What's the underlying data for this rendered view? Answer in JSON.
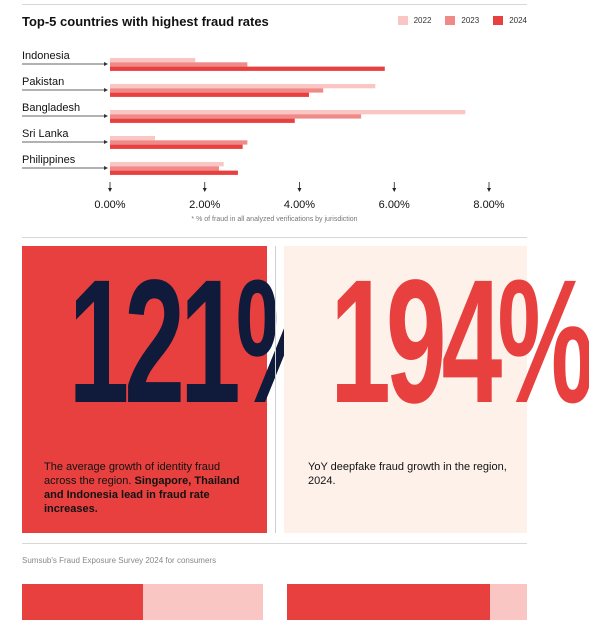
{
  "chart_data": {
    "type": "bar",
    "orientation": "horizontal",
    "title": "Top-5 countries with highest fraud rates",
    "categories": [
      "Indonesia",
      "Pakistan",
      "Bangladesh",
      "Sri Lanka",
      "Philippines"
    ],
    "series": [
      {
        "name": "2022",
        "color": "#f9c6c4",
        "values": [
          1.8,
          5.6,
          7.5,
          0.95,
          2.4
        ]
      },
      {
        "name": "2023",
        "color": "#f08a88",
        "values": [
          2.9,
          4.5,
          5.3,
          2.9,
          2.3
        ]
      },
      {
        "name": "2024",
        "color": "#e8403f",
        "values": [
          5.8,
          4.2,
          3.9,
          2.8,
          2.7
        ]
      }
    ],
    "xlim": [
      0,
      8
    ],
    "xticks": [
      0,
      2,
      4,
      6,
      8
    ],
    "xtick_labels": [
      "0.00%",
      "2.00%",
      "4.00%",
      "6.00%",
      "8.00%"
    ],
    "legend_position": "top-right",
    "grid": false,
    "footnote": "* % of fraud in all analyzed verifications by jurisdiction"
  },
  "stats": [
    {
      "value": "121%",
      "text_plain": "The average growth of identity fraud across the region. ",
      "text_bold": "Singapore, Thailand and Indonesia lead in fraud rate increases."
    },
    {
      "value": "194%",
      "text_plain": "YoY deepfake fraud growth in the region, 2024."
    }
  ],
  "source": "Sumsub's Fraud Exposure Survey 2024 for consumers",
  "colors": {
    "accent_red": "#e8403f",
    "light_pink": "#f9c6c4",
    "navy": "#101a3a",
    "cream": "#fdf1ea"
  }
}
